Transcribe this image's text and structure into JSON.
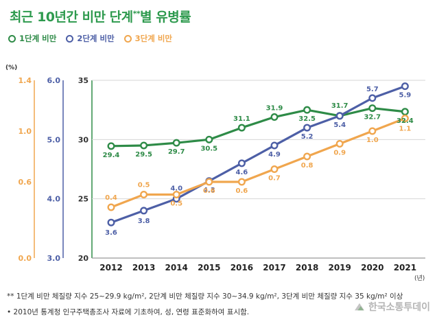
{
  "title": {
    "main": "최근 10년간 비만 단계",
    "sup": "**",
    "rest": "별 유병률"
  },
  "legend": [
    {
      "label": "1단계 비만",
      "color": "#2e8b47"
    },
    {
      "label": "2단계 비만",
      "color": "#4d5fa6"
    },
    {
      "label": "3단계 비만",
      "color": "#f0a64e"
    }
  ],
  "chart_data": {
    "type": "line",
    "unit_label": "(%)",
    "x_unit_label": "(년)",
    "x": [
      "2012",
      "2013",
      "2014",
      "2015",
      "2016",
      "2017",
      "2018",
      "2019",
      "2020",
      "2021"
    ],
    "axes": {
      "axis3": {
        "color": "#f0a64e",
        "ticks": [
          "1.4",
          "1.0",
          "0.6",
          "0.0"
        ],
        "tick_values": [
          1.4,
          1.0,
          0.6,
          0.0
        ],
        "ylim": [
          0.0,
          1.4
        ]
      },
      "axis2": {
        "color": "#4d5fa6",
        "ticks": [
          "6.0",
          "5.0",
          "4.0",
          "3.0"
        ],
        "tick_values": [
          6.0,
          5.0,
          4.0,
          3.0
        ],
        "ylim": [
          3.0,
          6.0
        ]
      },
      "axis1": {
        "color": "#2e8b47",
        "ticks": [
          "35",
          "30",
          "25",
          "20"
        ],
        "tick_values": [
          35,
          30,
          25,
          20
        ],
        "ylim": [
          20,
          35
        ]
      }
    },
    "series": [
      {
        "name": "1단계 비만",
        "color": "#2e8b47",
        "values": [
          29.4,
          29.5,
          29.7,
          30.5,
          31.1,
          31.9,
          32.5,
          31.7,
          32.7,
          32.4
        ],
        "labels": [
          "29.4",
          "29.5",
          "29.7",
          "30.5",
          "31.1",
          "31.9",
          "32.5",
          "31.7",
          "32.7",
          "32.4"
        ],
        "plot_on_axis1": [
          29.45,
          29.5,
          29.72,
          30.0,
          31.0,
          31.9,
          32.5,
          32.0,
          32.65,
          32.35
        ]
      },
      {
        "name": "2단계 비만",
        "color": "#4d5fa6",
        "values": [
          3.6,
          3.8,
          4.0,
          4.3,
          4.6,
          4.9,
          5.2,
          5.4,
          5.7,
          5.9
        ],
        "labels": [
          "3.6",
          "3.8",
          "4.0",
          "4.3",
          "4.6",
          "4.9",
          "5.2",
          "5.4",
          "5.7",
          "5.9"
        ]
      },
      {
        "name": "3단계 비만",
        "color": "#f0a64e",
        "values": [
          0.4,
          0.5,
          0.5,
          0.6,
          0.6,
          0.7,
          0.8,
          0.9,
          1.0,
          1.1
        ],
        "labels": [
          "0.4",
          "0.5",
          "0.5",
          "0.6",
          "0.6",
          "0.7",
          "0.8",
          "0.9",
          "1.0",
          "1.1"
        ]
      }
    ]
  },
  "footnotes": {
    "line1": "** 1단계 비만 체질량 지수 25~29.9 kg/m², 2단계 비만 체질량 지수 30~34.9 kg/m², 3단계 비만 체질량 지수 35 kg/m² 이상",
    "line2": "• 2010년 통계청 인구주택총조사 자료에 기초하여, 성, 연령 표준화하여 표시함."
  },
  "watermark": "한국소통투데이"
}
